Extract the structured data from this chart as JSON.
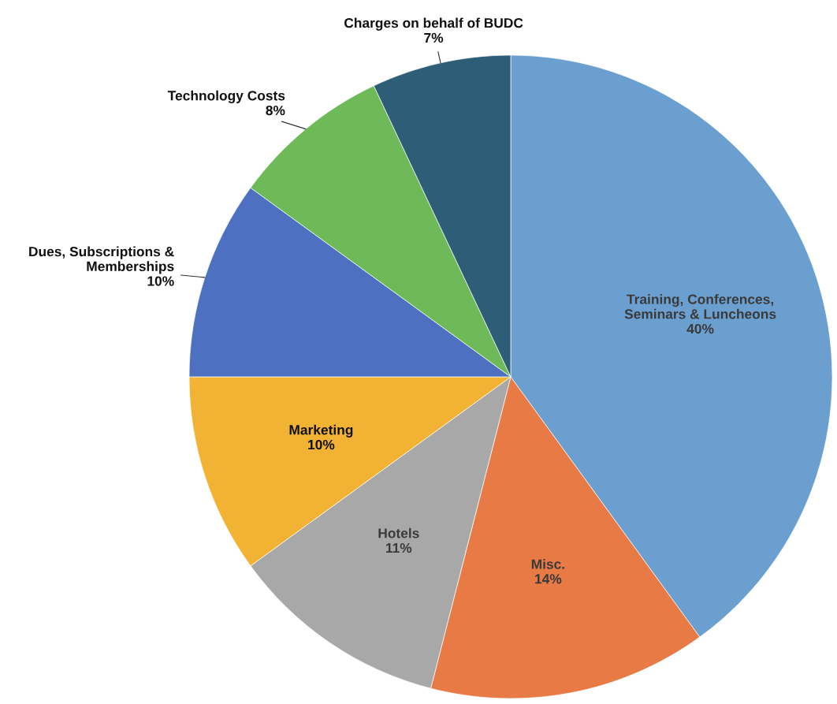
{
  "chart_data": {
    "type": "pie",
    "categories": [
      "Training, Conferences,\nSeminars & Luncheons",
      "Misc.",
      "Hotels",
      "Marketing",
      "Dues, Subscriptions &\nMemberships",
      "Technology Costs",
      "Charges on behalf of BUDC"
    ],
    "values": [
      40,
      14,
      11,
      10,
      10,
      8,
      7
    ],
    "value_labels": [
      "40%",
      "14%",
      "11%",
      "10%",
      "10%",
      "8%",
      "7%"
    ],
    "colors": [
      "#6b9fcf",
      "#e77a45",
      "#a8a8a8",
      "#f2b233",
      "#4e70c0",
      "#6fba58",
      "#2e5d78"
    ],
    "legend": false
  }
}
